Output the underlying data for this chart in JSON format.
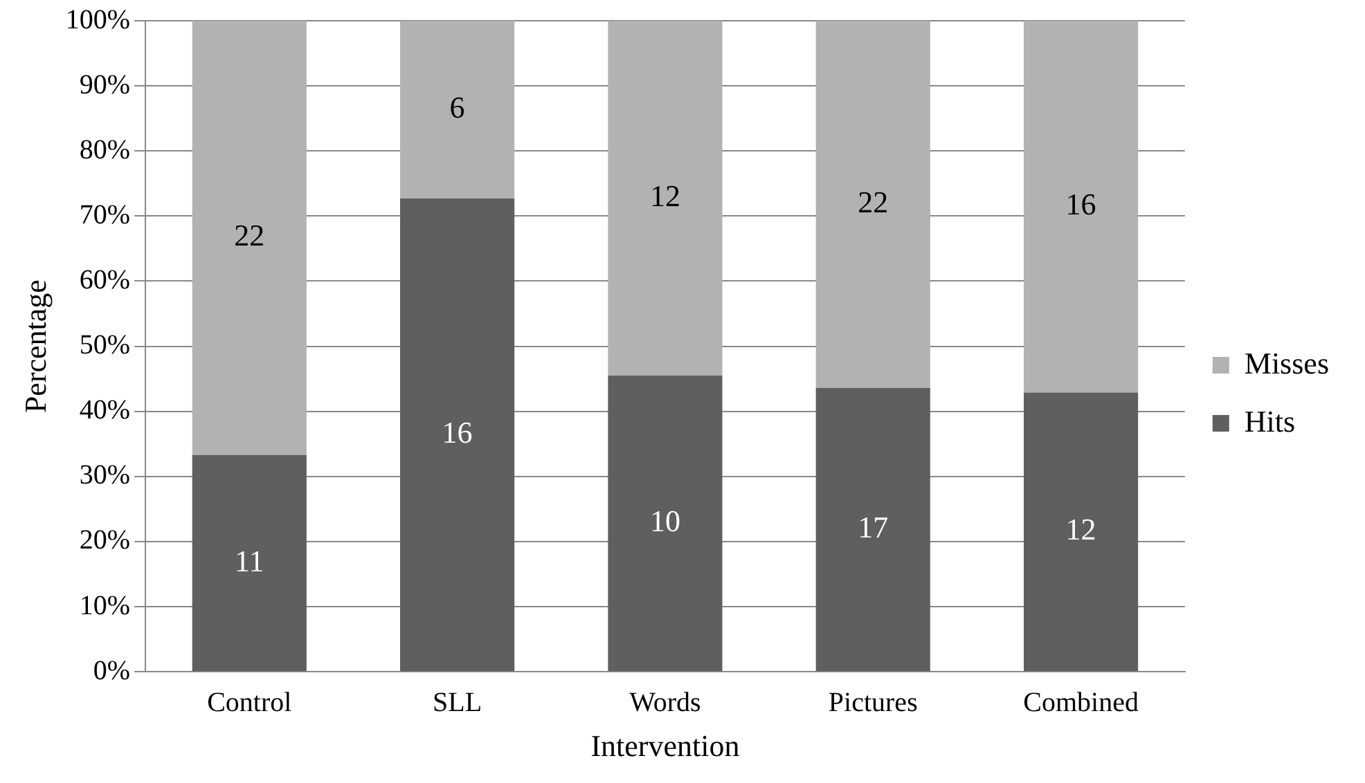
{
  "chart_data": {
    "type": "bar",
    "stacked": true,
    "xlabel": "Intervention",
    "ylabel": "Percentage",
    "categories": [
      "Control",
      "SLL",
      "Words",
      "Pictures",
      "Combined"
    ],
    "series": [
      {
        "name": "Hits",
        "color": "#5f5f5f",
        "values": [
          33.3,
          72.7,
          45.5,
          43.6,
          42.9
        ]
      },
      {
        "name": "Misses",
        "color": "#b2b2b2",
        "values": [
          66.7,
          27.3,
          54.5,
          56.4,
          57.1
        ]
      }
    ],
    "annotations": [
      "11",
      "22",
      "16",
      "6",
      "10",
      "12",
      "17",
      "22",
      "12",
      "16"
    ],
    "ylim": [
      0,
      100
    ],
    "yticks": [
      {
        "value": 0,
        "label": "0%"
      },
      {
        "value": 10,
        "label": "10%"
      },
      {
        "value": 20,
        "label": "20%"
      },
      {
        "value": 30,
        "label": "30%"
      },
      {
        "value": 40,
        "label": "40%"
      },
      {
        "value": 50,
        "label": "50%"
      },
      {
        "value": 60,
        "label": "60%"
      },
      {
        "value": 70,
        "label": "70%"
      },
      {
        "value": 80,
        "label": "80%"
      },
      {
        "value": 90,
        "label": "90%"
      },
      {
        "value": 100,
        "label": "100%"
      }
    ],
    "grid": "y",
    "legend": "right"
  }
}
